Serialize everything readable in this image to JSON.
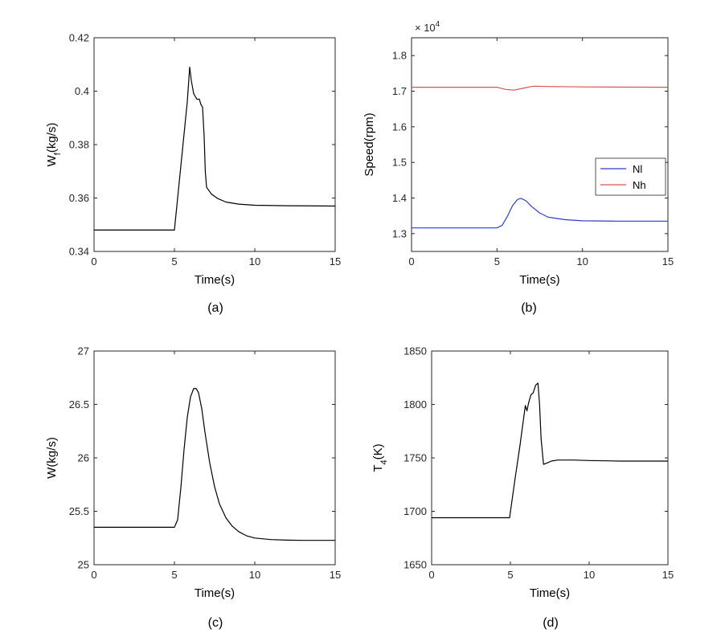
{
  "chart_data": [
    {
      "id": "a",
      "type": "line",
      "caption": "(a)",
      "xlabel": "Time(s)",
      "ylabel_main": "W",
      "ylabel_sub": "f",
      "ylabel_rest": "(kg/s)",
      "xlim": [
        0,
        15
      ],
      "ylim": [
        0.34,
        0.42
      ],
      "xticks": [
        0,
        5,
        10,
        15
      ],
      "xtick_labels": [
        "0",
        "5",
        "10",
        "15"
      ],
      "yticks": [
        0.34,
        0.36,
        0.38,
        0.4,
        0.42
      ],
      "ytick_labels": [
        "0.34",
        "0.36",
        "0.38",
        "0.4",
        "0.42"
      ],
      "series": [
        {
          "name": "Wf",
          "color": "#000000",
          "x": [
            0,
            5.0,
            5.3,
            5.6,
            5.8,
            5.95,
            6.05,
            6.2,
            6.4,
            6.55,
            6.65,
            6.75,
            6.85,
            6.92,
            7.0,
            7.3,
            7.7,
            8.2,
            9,
            10,
            12,
            15
          ],
          "y": [
            0.348,
            0.348,
            0.366,
            0.384,
            0.396,
            0.409,
            0.404,
            0.399,
            0.397,
            0.397,
            0.395,
            0.394,
            0.383,
            0.37,
            0.364,
            0.3615,
            0.3598,
            0.3585,
            0.3577,
            0.3573,
            0.3571,
            0.357
          ]
        }
      ]
    },
    {
      "id": "b",
      "type": "line",
      "caption": "(b)",
      "xlabel": "Time(s)",
      "ylabel": "Speed(rpm)",
      "exponent_base": "× 10",
      "exponent_power": "4",
      "xlim": [
        0,
        15
      ],
      "ylim": [
        1.25,
        1.85
      ],
      "xticks": [
        0,
        5,
        10,
        15
      ],
      "xtick_labels": [
        "0",
        "5",
        "10",
        "15"
      ],
      "yticks": [
        1.3,
        1.4,
        1.5,
        1.6,
        1.7,
        1.8
      ],
      "ytick_labels": [
        "1.3",
        "1.4",
        "1.5",
        "1.6",
        "1.7",
        "1.8"
      ],
      "legend_position": "right",
      "series": [
        {
          "name": "Nl",
          "color": "#2f3fc4",
          "x": [
            0,
            5.0,
            5.3,
            5.6,
            5.9,
            6.2,
            6.4,
            6.7,
            7.0,
            7.5,
            8,
            9,
            10,
            12,
            15
          ],
          "y": [
            1.316,
            1.316,
            1.323,
            1.348,
            1.378,
            1.396,
            1.399,
            1.392,
            1.377,
            1.358,
            1.346,
            1.339,
            1.336,
            1.335,
            1.335
          ]
        },
        {
          "name": "Nh",
          "color": "#d9534f",
          "x": [
            0,
            5.0,
            5.5,
            6.0,
            6.5,
            7.0,
            7.2,
            8,
            10,
            15
          ],
          "y": [
            1.711,
            1.711,
            1.705,
            1.703,
            1.708,
            1.713,
            1.714,
            1.713,
            1.712,
            1.711
          ]
        }
      ]
    },
    {
      "id": "c",
      "type": "line",
      "caption": "(c)",
      "xlabel": "Time(s)",
      "ylabel": "W(kg/s)",
      "xlim": [
        0,
        15
      ],
      "ylim": [
        25,
        27
      ],
      "xticks": [
        0,
        5,
        10,
        15
      ],
      "xtick_labels": [
        "0",
        "5",
        "10",
        "15"
      ],
      "yticks": [
        25,
        25.5,
        26,
        26.5,
        27
      ],
      "ytick_labels": [
        "25",
        "25.5",
        "26",
        "26.5",
        "27"
      ],
      "series": [
        {
          "name": "W",
          "color": "#000000",
          "x": [
            0,
            5.0,
            5.2,
            5.4,
            5.6,
            5.8,
            6.0,
            6.2,
            6.35,
            6.5,
            6.7,
            6.9,
            7.2,
            7.5,
            7.8,
            8.2,
            8.6,
            9.0,
            9.5,
            10,
            11,
            12,
            13,
            15
          ],
          "y": [
            25.35,
            25.35,
            25.42,
            25.72,
            26.08,
            26.38,
            26.57,
            26.65,
            26.65,
            26.61,
            26.46,
            26.24,
            25.95,
            25.73,
            25.57,
            25.44,
            25.36,
            25.31,
            25.27,
            25.25,
            25.235,
            25.23,
            25.228,
            25.228
          ]
        }
      ]
    },
    {
      "id": "d",
      "type": "line",
      "caption": "(d)",
      "xlabel": "Time(s)",
      "ylabel_main": "T",
      "ylabel_sub": "4",
      "ylabel_rest": "(K)",
      "xlim": [
        0,
        15
      ],
      "ylim": [
        1650,
        1850
      ],
      "xticks": [
        0,
        5,
        10,
        15
      ],
      "xtick_labels": [
        "0",
        "5",
        "10",
        "15"
      ],
      "yticks": [
        1650,
        1700,
        1750,
        1800,
        1850
      ],
      "ytick_labels": [
        "1650",
        "1700",
        "1750",
        "1800",
        "1850"
      ],
      "series": [
        {
          "name": "T4",
          "color": "#000000",
          "x": [
            0,
            4.95,
            5.3,
            5.6,
            5.95,
            6.05,
            6.15,
            6.3,
            6.45,
            6.6,
            6.75,
            6.85,
            6.95,
            7.1,
            7.3,
            7.6,
            8,
            9,
            10,
            12,
            15
          ],
          "y": [
            1694,
            1694,
            1731,
            1761,
            1799,
            1794,
            1801,
            1809,
            1811,
            1818,
            1820,
            1800,
            1768,
            1744,
            1745,
            1747,
            1748,
            1748,
            1747.5,
            1747,
            1747
          ]
        }
      ]
    }
  ]
}
